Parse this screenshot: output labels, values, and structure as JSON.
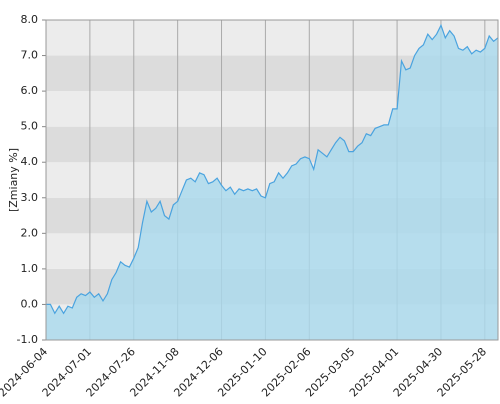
{
  "chart_data": {
    "type": "area",
    "y_label": "[Zmiany %]",
    "categories": [
      "2024-06-04",
      null,
      null,
      null,
      null,
      null,
      null,
      null,
      null,
      null,
      "2024-07-01",
      null,
      null,
      null,
      null,
      null,
      null,
      null,
      null,
      null,
      "2024-07-26",
      null,
      null,
      null,
      null,
      null,
      null,
      null,
      null,
      null,
      "2024-11-08",
      null,
      null,
      null,
      null,
      null,
      null,
      null,
      null,
      null,
      "2024-12-06",
      null,
      null,
      null,
      null,
      null,
      null,
      null,
      null,
      null,
      "2025-01-10",
      null,
      null,
      null,
      null,
      null,
      null,
      null,
      null,
      null,
      "2025-02-06",
      null,
      null,
      null,
      null,
      null,
      null,
      null,
      null,
      null,
      "2025-03-05",
      null,
      null,
      null,
      null,
      null,
      null,
      null,
      null,
      null,
      "2025-04-01",
      null,
      null,
      null,
      null,
      null,
      null,
      null,
      null,
      null,
      "2025-04-30",
      null,
      null,
      null,
      null,
      null,
      null,
      null,
      null,
      null,
      "2025-05-28",
      null,
      null,
      null
    ],
    "series": [
      {
        "name": "Zmiany",
        "color": "#4aa3df",
        "fill": "#a9d9ee",
        "values": [
          0.0,
          0.0,
          -0.25,
          -0.05,
          -0.25,
          -0.05,
          -0.1,
          0.2,
          0.3,
          0.25,
          0.35,
          0.2,
          0.3,
          0.1,
          0.3,
          0.7,
          0.9,
          1.2,
          1.1,
          1.05,
          1.3,
          1.6,
          2.3,
          2.9,
          2.6,
          2.7,
          2.9,
          2.5,
          2.4,
          2.8,
          2.9,
          3.2,
          3.5,
          3.55,
          3.45,
          3.7,
          3.65,
          3.4,
          3.45,
          3.55,
          3.35,
          3.2,
          3.3,
          3.1,
          3.25,
          3.2,
          3.25,
          3.2,
          3.25,
          3.05,
          3.0,
          3.4,
          3.45,
          3.7,
          3.55,
          3.7,
          3.9,
          3.95,
          4.1,
          4.15,
          4.1,
          3.8,
          4.35,
          4.25,
          4.15,
          4.35,
          4.55,
          4.7,
          4.6,
          4.3,
          4.3,
          4.45,
          4.55,
          4.8,
          4.75,
          4.95,
          5.0,
          5.05,
          5.05,
          5.5,
          5.5,
          6.85,
          6.6,
          6.65,
          7.0,
          7.2,
          7.3,
          7.6,
          7.45,
          7.6,
          7.85,
          7.5,
          7.7,
          7.55,
          7.2,
          7.15,
          7.25,
          7.05,
          7.15,
          7.1,
          7.2,
          7.55,
          7.4,
          7.5
        ]
      }
    ],
    "ylim": [
      -1,
      8
    ],
    "yticks": [
      {
        "value": -1,
        "label": "-1.0"
      },
      {
        "value": 0,
        "label": "0.0"
      },
      {
        "value": 1,
        "label": "1.0"
      },
      {
        "value": 2,
        "label": "2.0"
      },
      {
        "value": 3,
        "label": "3.0"
      },
      {
        "value": 4,
        "label": "4.0"
      },
      {
        "value": 5,
        "label": "5.0"
      },
      {
        "value": 6,
        "label": "6.0"
      },
      {
        "value": 7,
        "label": "7.0"
      },
      {
        "value": 8,
        "label": "8.0"
      }
    ],
    "grid": true
  }
}
